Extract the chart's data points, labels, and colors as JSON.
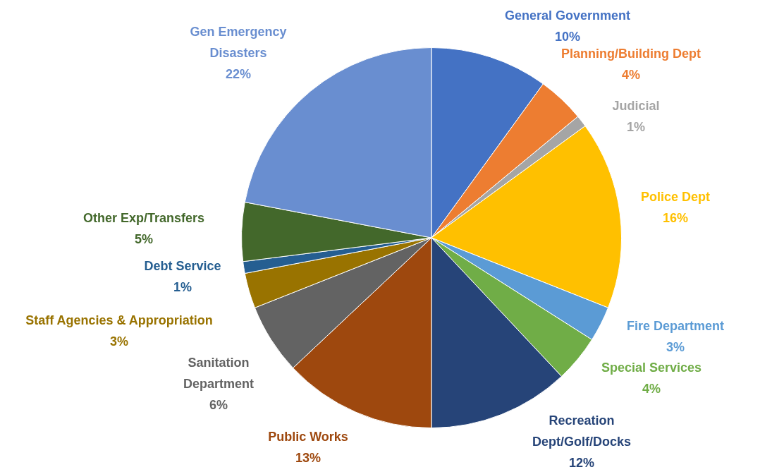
{
  "chart_data": {
    "type": "pie",
    "categories": [
      "General Government",
      "Planning/Building Dept",
      "Judicial",
      "Police Dept",
      "Fire Department",
      "Special Services",
      "Recreation Dept/Golf/Docks",
      "Public Works",
      "Sanitation Department",
      "Staff Agencies & Appropriation",
      "Debt Service",
      "Other Exp/Transfers",
      "Gen Emergency Disasters"
    ],
    "values": [
      10,
      4,
      1,
      16,
      3,
      4,
      12,
      13,
      6,
      3,
      1,
      5,
      22
    ],
    "value_labels": [
      "10%",
      "4%",
      "1%",
      "16%",
      "3%",
      "4%",
      "12%",
      "13%",
      "6%",
      "3%",
      "1%",
      "5%",
      "22%"
    ],
    "colors": [
      "#4472c4",
      "#ed7d31",
      "#a5a5a5",
      "#ffc000",
      "#5b9bd5",
      "#70ad47",
      "#264478",
      "#9e480e",
      "#636363",
      "#997300",
      "#255e91",
      "#43682b",
      "#698ed0"
    ],
    "legend": false
  }
}
